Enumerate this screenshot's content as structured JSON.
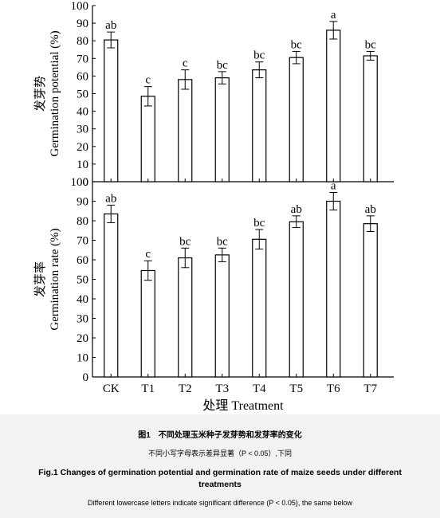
{
  "chart_data": [
    {
      "type": "bar",
      "title": "",
      "ylabel_cn": "发芽势",
      "ylabel": "Germination potential (%)",
      "xlabel": "",
      "categories": [
        "CK",
        "T1",
        "T2",
        "T3",
        "T4",
        "T5",
        "T6",
        "T7"
      ],
      "values": [
        80.5,
        48.5,
        58,
        59,
        63.5,
        70.5,
        86,
        71.5
      ],
      "errors": [
        4.5,
        5.5,
        5.5,
        3.5,
        4.5,
        3.5,
        5,
        2.5
      ],
      "significance": [
        "ab",
        "c",
        "c",
        "bc",
        "bc",
        "bc",
        "a",
        "bc"
      ],
      "ylim": [
        0,
        100
      ],
      "yticks": [
        0,
        10,
        20,
        30,
        40,
        50,
        60,
        70,
        80,
        90,
        100
      ],
      "grid": false,
      "show_xtick_labels": false
    },
    {
      "type": "bar",
      "title": "",
      "ylabel_cn": "发芽率",
      "ylabel": "Germination rate (%)",
      "xlabel_cn": "处理",
      "xlabel": "Treatment",
      "categories": [
        "CK",
        "T1",
        "T2",
        "T3",
        "T4",
        "T5",
        "T6",
        "T7"
      ],
      "values": [
        83.5,
        54.5,
        61,
        62.5,
        70.5,
        79.5,
        90,
        78.5
      ],
      "errors": [
        4.5,
        5,
        5,
        3.5,
        5,
        3,
        4.5,
        4
      ],
      "significance": [
        "ab",
        "c",
        "bc",
        "bc",
        "bc",
        "ab",
        "a",
        "ab"
      ],
      "ylim": [
        0,
        100
      ],
      "yticks": [
        0,
        10,
        20,
        30,
        40,
        50,
        60,
        70,
        80,
        90,
        100
      ],
      "grid": false,
      "show_xtick_labels": true
    }
  ],
  "caption": {
    "zh_title": "图1　不同处理玉米种子发芽势和发芽率的变化",
    "zh_note": "不同小写字母表示差异显著（P < 0.05）,下同",
    "en_title": "Fig.1   Changes of germination potential and germination rate of maize seeds under different treatments",
    "en_note": "Different lowercase letters indicate significant difference (P < 0.05), the same below"
  }
}
